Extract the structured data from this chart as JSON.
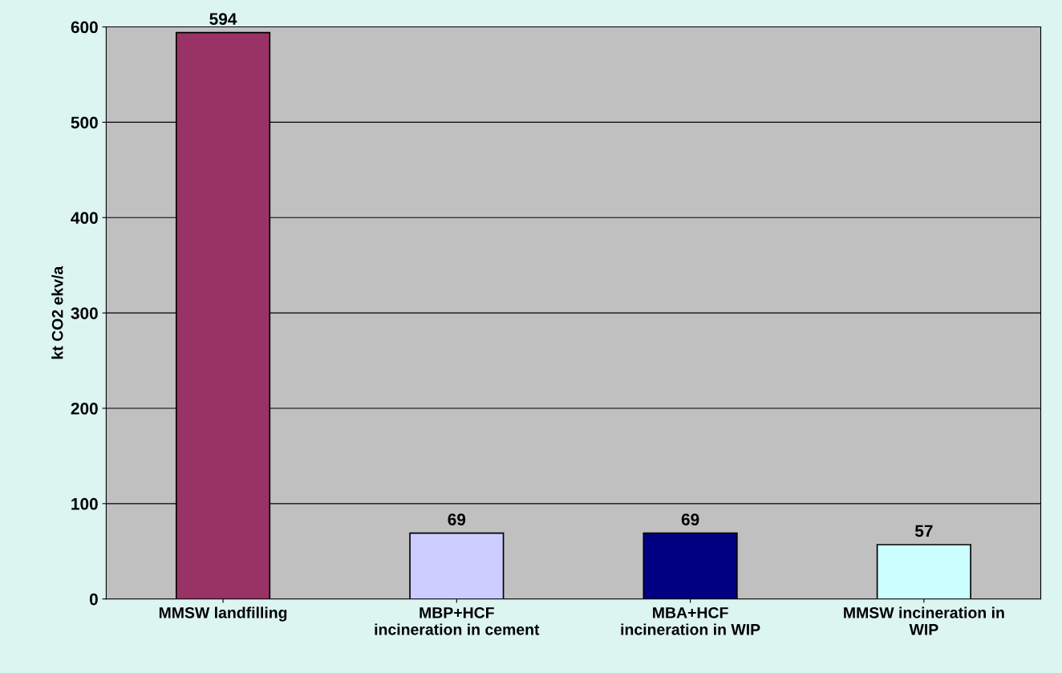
{
  "chart_data": {
    "type": "bar",
    "ylabel": "kt CO2 ekv/a",
    "categories": [
      "MMSW landfilling",
      "MBP+HCF\nincineration in cement",
      "MBA+HCF\nincineration in WIP",
      "MMSW incineration in\nWIP"
    ],
    "values": [
      594,
      69,
      69,
      57
    ],
    "colors": [
      "#993366",
      "#ccccff",
      "#000080",
      "#ccffff"
    ],
    "ylim": [
      0,
      600
    ],
    "yticks": [
      0,
      100,
      200,
      300,
      400,
      500,
      600
    ],
    "grid": "y",
    "data_labels": true
  }
}
